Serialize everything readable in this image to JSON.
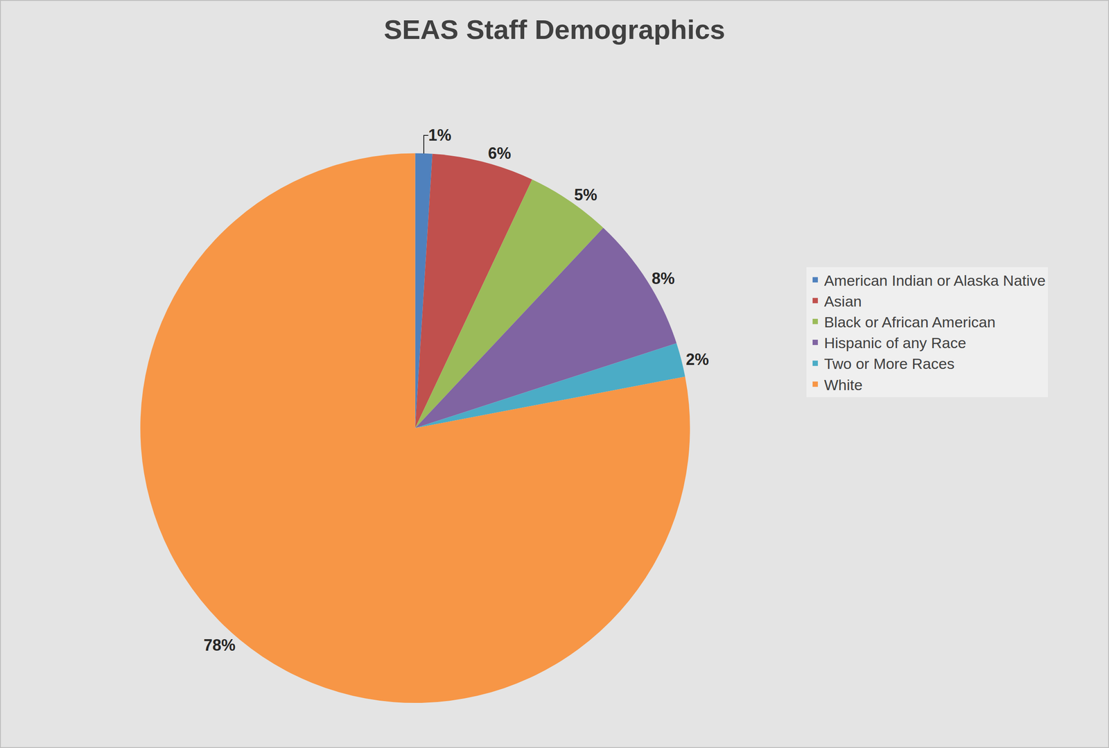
{
  "chart_data": {
    "type": "pie",
    "title": "SEAS Staff Demographics",
    "categories": [
      "American Indian or Alaska Native",
      "Asian",
      "Black or African American",
      "Hispanic of any Race",
      "Two or More Races",
      "White"
    ],
    "values": [
      1,
      6,
      5,
      8,
      2,
      78
    ],
    "value_labels": [
      "1%",
      "6%",
      "5%",
      "8%",
      "2%",
      "78%"
    ],
    "colors": [
      "#4f81bd",
      "#c0504d",
      "#9bbb59",
      "#8064a2",
      "#4bacc6",
      "#f79646"
    ],
    "data_labels": true,
    "legend": "right"
  }
}
